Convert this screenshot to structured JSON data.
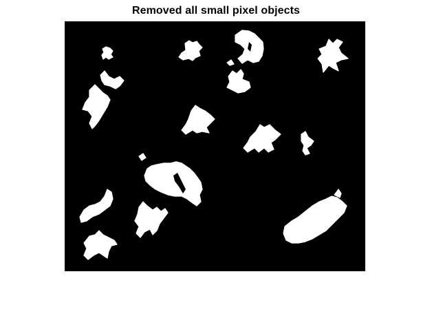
{
  "figure": {
    "title": "Removed all small pixel objects",
    "background_color": "#ffffff",
    "image_background_color": "#000000",
    "object_color": "#ffffff",
    "object_count": 18
  }
}
